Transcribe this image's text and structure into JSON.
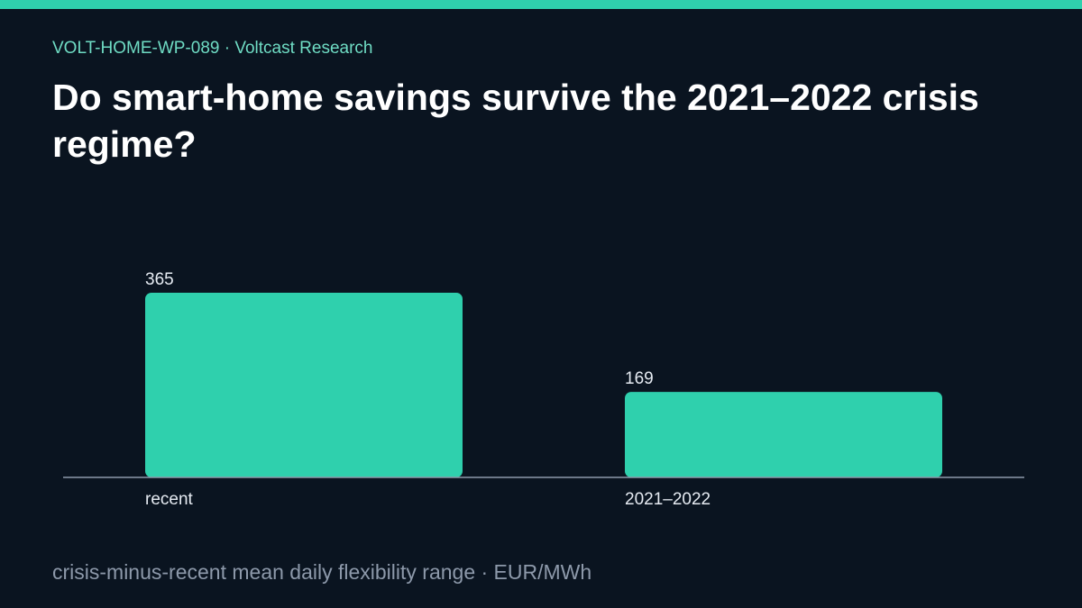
{
  "header": {
    "eyebrow": "VOLT-HOME-WP-089 · Voltcast Research",
    "title": "Do smart-home savings survive the 2021–2022 crisis regime?"
  },
  "footer": {
    "caption": "crisis-minus-recent mean daily flexibility range · EUR/MWh"
  },
  "colors": {
    "background": "#0a1420",
    "accent": "#2fd0ad",
    "eyebrow": "#6fdcc4",
    "axis": "#8d99aa",
    "label": "#e6ebf2"
  },
  "chart_data": {
    "type": "bar",
    "categories": [
      "recent",
      "2021–2022"
    ],
    "values": [
      365,
      169
    ],
    "data_labels": [
      "365",
      "169"
    ],
    "title": "",
    "xlabel": "",
    "ylabel": "",
    "ylim": [
      0,
      365
    ],
    "grid": false,
    "legend": "none"
  }
}
